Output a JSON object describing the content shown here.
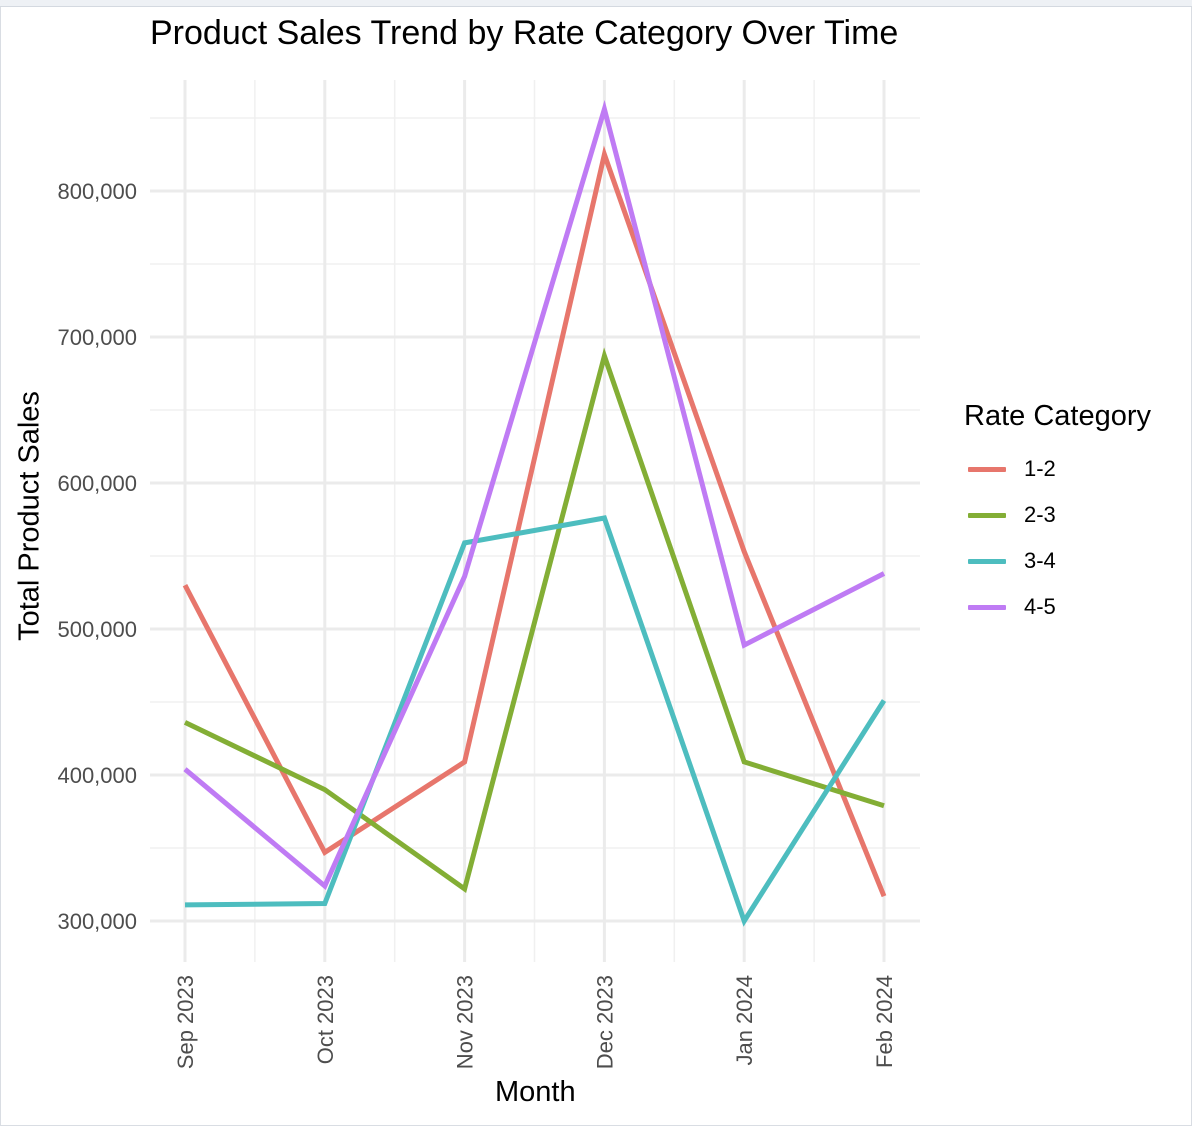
{
  "chart_data": {
    "type": "line",
    "title": "Product Sales Trend by Rate Category Over Time",
    "xlabel": "Month",
    "ylabel": "Total Product Sales",
    "x": [
      "Sep 2023",
      "Oct 2023",
      "Nov 2023",
      "Dec 2023",
      "Jan 2024",
      "Feb 2024"
    ],
    "ylim": [
      290000,
      875000
    ],
    "yticks": [
      300000,
      400000,
      500000,
      600000,
      700000,
      800000
    ],
    "ytick_labels": [
      "300,000",
      "400,000",
      "500,000",
      "600,000",
      "700,000",
      "800,000"
    ],
    "grid": true,
    "legend": {
      "title": "Rate Category",
      "position": "right"
    },
    "series": [
      {
        "name": "1-2",
        "color": "#E7766C",
        "values": [
          530000,
          347000,
          409000,
          825000,
          553000,
          317000
        ]
      },
      {
        "name": "2-3",
        "color": "#83AE35",
        "values": [
          436000,
          390000,
          322000,
          687000,
          409000,
          379000
        ]
      },
      {
        "name": "3-4",
        "color": "#4DBDBF",
        "values": [
          311000,
          312000,
          559000,
          576000,
          300000,
          451000
        ]
      },
      {
        "name": "4-5",
        "color": "#BF7BF4",
        "values": [
          404000,
          324000,
          536000,
          856000,
          489000,
          538000
        ]
      }
    ]
  }
}
